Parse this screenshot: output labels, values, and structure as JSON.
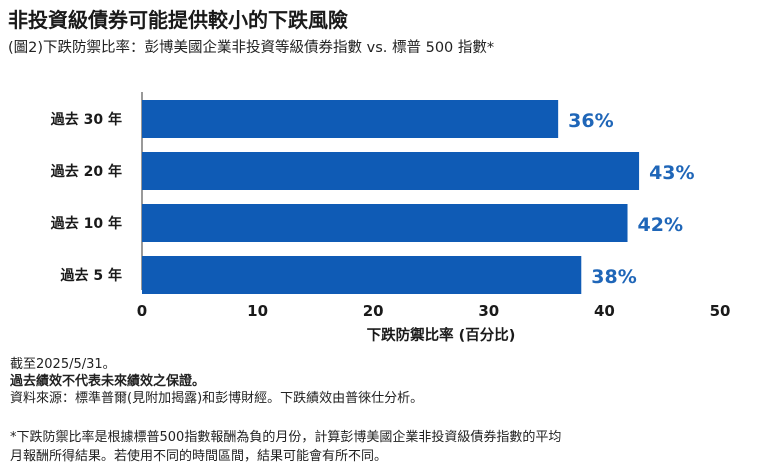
{
  "header": {
    "title": "非投資級債券可能提供較小的下跌風險",
    "subtitle": "(圖2)下跌防禦比率：彭博美國企業非投資等級債券指數 vs. 標普 500 指數*"
  },
  "chart_data": {
    "type": "bar",
    "orientation": "horizontal",
    "categories": [
      "過去 30 年",
      "過去 20 年",
      "過去 10 年",
      "過去 5 年"
    ],
    "values": [
      36,
      43,
      42,
      38
    ],
    "value_labels": [
      "36%",
      "43%",
      "42%",
      "38%"
    ],
    "xlabel": "下跌防禦比率 (百分比)",
    "xlim": [
      0,
      50
    ],
    "xticks": [
      "0",
      "10",
      "20",
      "30",
      "40",
      "50"
    ],
    "grid": false,
    "colors": {
      "bar": "#0f5bb5",
      "label": "#1f66b8",
      "axis": "#333333"
    }
  },
  "notes": {
    "date": "截至2025/5/31。",
    "disclaimer": "過去績效不代表未來績效之保證。",
    "source": "資料來源：標準普爾(見附加揭露)和彭博財經。下跌績效由普徠仕分析。",
    "footnote_line1": "*下跌防禦比率是根據標普500指數報酬為負的月份，計算彭博美國企業非投資級債券指數的平均",
    "footnote_line2": "月報酬所得結果。若使用不同的時間區間，結果可能會有所不同。"
  }
}
